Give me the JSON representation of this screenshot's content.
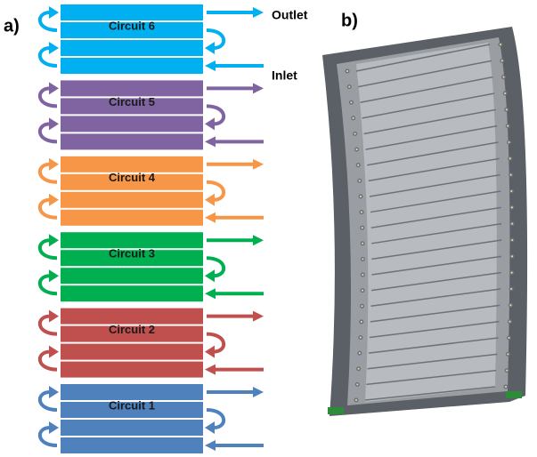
{
  "panel_a": {
    "label": "a)",
    "outlet": "Outlet",
    "inlet": "Inlet",
    "circuits": [
      {
        "label": "Circuit 6",
        "color": "#00b0f0"
      },
      {
        "label": "Circuit 5",
        "color": "#8064a2"
      },
      {
        "label": "Circuit 4",
        "color": "#f79646"
      },
      {
        "label": "Circuit 3",
        "color": "#00b050"
      },
      {
        "label": "Circuit 2",
        "color": "#c0504d"
      },
      {
        "label": "Circuit 1",
        "color": "#4f81bd"
      }
    ]
  },
  "panel_b": {
    "label": "b)"
  }
}
